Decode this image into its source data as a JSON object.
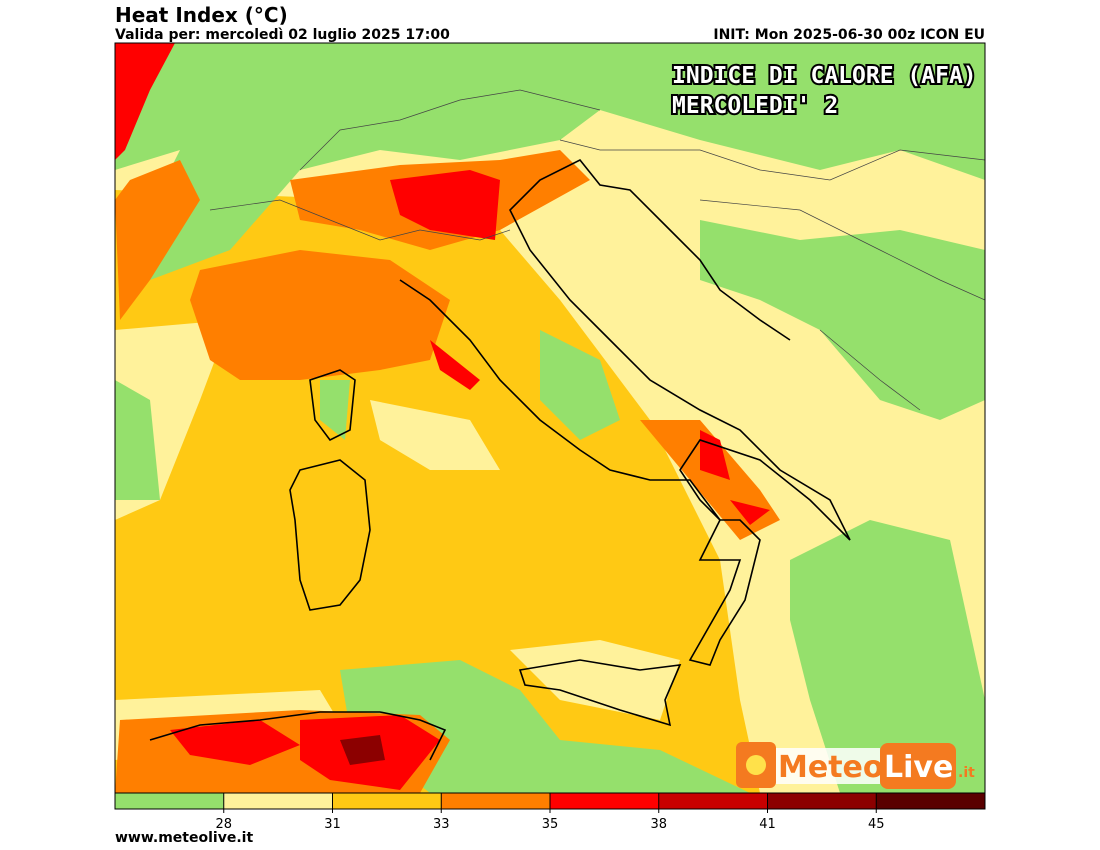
{
  "header": {
    "title": "Heat Index (°C)",
    "valid": "Valida per: mercoledì 02 luglio 2025 17:00",
    "init": "INIT: Mon 2025-06-30 00z ICON EU"
  },
  "overlay": {
    "line1": "INDICE DI CALORE (AFA)",
    "line2": "MERCOLEDI' 2"
  },
  "colorbar": {
    "colors": [
      "#95e06c",
      "#fff29b",
      "#ffc914",
      "#ff7f00",
      "#ff0000",
      "#c80000",
      "#8c0000",
      "#5a0000"
    ],
    "ticks": [
      28,
      31,
      33,
      35,
      38,
      41,
      45
    ]
  },
  "logo": {
    "part1": "Meteo",
    "part2": "Live",
    "suffix": ".it"
  },
  "footer": {
    "url": "www.meteolive.it"
  }
}
